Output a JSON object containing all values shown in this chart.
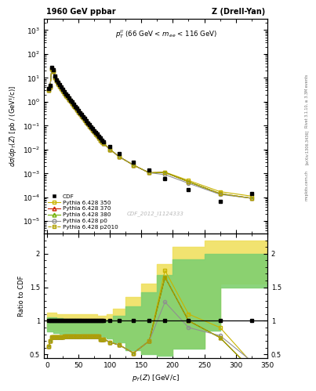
{
  "title_left": "1960 GeV ppbar",
  "title_right": "Z (Drell-Yan)",
  "ylabel_main": "dσ/dp_T(Z) [pb / (GeV!/c)]",
  "xlabel": "p_T(Z) [GeV!/c]",
  "ylabel_ratio": "Ratio to CDF",
  "annotation_top": "p_T^{ll} (66 GeV < m_{ee} < 116 GeV)",
  "watermark": "CDF_2012_I1124333",
  "rivet_text": "Rivet 3.1.10, ≥ 3.3M events",
  "arxiv_text": "[arXiv:1306.3436]",
  "mcplots_text": "mcplots.cern.ch",
  "ylim_main": [
    3e-06,
    3000.0
  ],
  "ylim_ratio": [
    0.45,
    2.3
  ],
  "xlim": [
    -5,
    350
  ],
  "cdf_pt": [
    2.5,
    5.0,
    7.5,
    10.0,
    12.5,
    15.0,
    17.5,
    20.0,
    22.5,
    25.0,
    27.5,
    30.0,
    32.5,
    35.0,
    37.5,
    40.0,
    42.5,
    45.0,
    47.5,
    50.0,
    52.5,
    55.0,
    57.5,
    60.0,
    62.5,
    65.0,
    67.5,
    70.0,
    72.5,
    75.0,
    77.5,
    80.0,
    82.5,
    85.0,
    87.5,
    90.0,
    100.0,
    115.0,
    137.5,
    162.5,
    187.5,
    225.0,
    275.0,
    325.0
  ],
  "cdf_y": [
    3.5,
    5.0,
    27.0,
    22.0,
    12.0,
    8.5,
    6.5,
    5.2,
    4.0,
    3.2,
    2.6,
    2.1,
    1.75,
    1.45,
    1.18,
    0.95,
    0.78,
    0.63,
    0.52,
    0.43,
    0.35,
    0.29,
    0.235,
    0.195,
    0.16,
    0.13,
    0.108,
    0.09,
    0.074,
    0.062,
    0.052,
    0.043,
    0.036,
    0.03,
    0.025,
    0.021,
    0.013,
    0.0065,
    0.003,
    0.00135,
    0.00058,
    0.00021,
    6.5e-05,
    0.00014
  ],
  "mc_pt": [
    2.5,
    5.0,
    7.5,
    10.0,
    12.5,
    15.0,
    17.5,
    20.0,
    22.5,
    25.0,
    27.5,
    30.0,
    32.5,
    35.0,
    37.5,
    40.0,
    42.5,
    45.0,
    47.5,
    50.0,
    52.5,
    55.0,
    57.5,
    60.0,
    62.5,
    65.0,
    67.5,
    70.0,
    72.5,
    75.0,
    77.5,
    80.0,
    82.5,
    85.0,
    87.5,
    90.0,
    100.0,
    115.0,
    137.5,
    162.5,
    187.5,
    225.0,
    275.0,
    325.0
  ],
  "py350_y": [
    3.0,
    4.2,
    23.0,
    19.0,
    10.5,
    7.5,
    5.7,
    4.5,
    3.6,
    2.85,
    2.3,
    1.85,
    1.55,
    1.28,
    1.04,
    0.84,
    0.69,
    0.56,
    0.46,
    0.38,
    0.31,
    0.255,
    0.21,
    0.172,
    0.141,
    0.116,
    0.096,
    0.079,
    0.065,
    0.054,
    0.045,
    0.037,
    0.031,
    0.025,
    0.021,
    0.018,
    0.01,
    0.0049,
    0.0022,
    0.00105,
    0.00112,
    0.0005,
    0.00017,
    0.00011
  ],
  "py370_y": [
    3.0,
    4.2,
    23.0,
    19.0,
    10.5,
    7.5,
    5.7,
    4.5,
    3.6,
    2.85,
    2.3,
    1.85,
    1.55,
    1.28,
    1.04,
    0.84,
    0.69,
    0.56,
    0.46,
    0.38,
    0.31,
    0.255,
    0.21,
    0.172,
    0.141,
    0.116,
    0.096,
    0.079,
    0.065,
    0.054,
    0.045,
    0.037,
    0.031,
    0.025,
    0.021,
    0.018,
    0.01,
    0.0049,
    0.0022,
    0.00105,
    0.00108,
    0.00044,
    0.00014,
    9e-05
  ],
  "py380_y": [
    3.0,
    4.2,
    23.0,
    19.0,
    10.5,
    7.5,
    5.7,
    4.5,
    3.6,
    2.85,
    2.3,
    1.85,
    1.55,
    1.28,
    1.04,
    0.84,
    0.69,
    0.56,
    0.46,
    0.38,
    0.31,
    0.255,
    0.21,
    0.172,
    0.141,
    0.116,
    0.096,
    0.079,
    0.065,
    0.054,
    0.045,
    0.037,
    0.031,
    0.025,
    0.021,
    0.018,
    0.01,
    0.0049,
    0.0022,
    0.00105,
    0.00108,
    0.00044,
    0.00014,
    9e-05
  ],
  "pyp0_y": [
    3.0,
    4.2,
    23.0,
    19.0,
    10.5,
    7.5,
    5.7,
    4.5,
    3.6,
    2.85,
    2.3,
    1.85,
    1.55,
    1.28,
    1.04,
    0.84,
    0.69,
    0.56,
    0.46,
    0.38,
    0.31,
    0.255,
    0.21,
    0.172,
    0.141,
    0.116,
    0.096,
    0.079,
    0.065,
    0.054,
    0.045,
    0.037,
    0.031,
    0.025,
    0.021,
    0.018,
    0.01,
    0.0049,
    0.0022,
    0.00105,
    0.00088,
    0.00038,
    0.00013,
    9e-05
  ],
  "pyp2010_y": [
    3.0,
    4.2,
    23.0,
    19.0,
    10.5,
    7.5,
    5.7,
    4.5,
    3.6,
    2.85,
    2.3,
    1.85,
    1.55,
    1.28,
    1.04,
    0.84,
    0.69,
    0.56,
    0.46,
    0.38,
    0.31,
    0.255,
    0.21,
    0.172,
    0.141,
    0.116,
    0.096,
    0.079,
    0.065,
    0.054,
    0.045,
    0.037,
    0.031,
    0.025,
    0.021,
    0.018,
    0.01,
    0.0049,
    0.0022,
    0.00105,
    0.00108,
    0.00044,
    0.00014,
    9e-05
  ],
  "ratio_pt": [
    2.5,
    5.0,
    7.5,
    10.0,
    12.5,
    15.0,
    17.5,
    20.0,
    22.5,
    25.0,
    27.5,
    30.0,
    32.5,
    35.0,
    37.5,
    40.0,
    42.5,
    45.0,
    47.5,
    50.0,
    52.5,
    55.0,
    57.5,
    60.0,
    62.5,
    65.0,
    67.5,
    70.0,
    72.5,
    75.0,
    77.5,
    80.0,
    82.5,
    85.0,
    87.5,
    90.0,
    100.0,
    115.0,
    137.5,
    162.5,
    187.5,
    225.0,
    275.0,
    325.0
  ],
  "ratio350_y": [
    0.62,
    0.7,
    0.76,
    0.76,
    0.76,
    0.76,
    0.76,
    0.76,
    0.76,
    0.76,
    0.77,
    0.77,
    0.77,
    0.77,
    0.77,
    0.77,
    0.77,
    0.77,
    0.77,
    0.77,
    0.77,
    0.77,
    0.77,
    0.77,
    0.77,
    0.77,
    0.77,
    0.77,
    0.77,
    0.77,
    0.77,
    0.77,
    0.77,
    0.73,
    0.73,
    0.73,
    0.68,
    0.64,
    0.52,
    0.7,
    1.75,
    1.1,
    0.9,
    0.38
  ],
  "ratio370_y": [
    0.62,
    0.7,
    0.76,
    0.76,
    0.76,
    0.76,
    0.76,
    0.76,
    0.76,
    0.76,
    0.77,
    0.77,
    0.77,
    0.77,
    0.77,
    0.77,
    0.77,
    0.77,
    0.77,
    0.77,
    0.77,
    0.77,
    0.77,
    0.77,
    0.77,
    0.77,
    0.77,
    0.77,
    0.77,
    0.77,
    0.77,
    0.77,
    0.77,
    0.73,
    0.73,
    0.73,
    0.68,
    0.64,
    0.52,
    0.7,
    1.65,
    1.0,
    0.75,
    0.28
  ],
  "ratio380_y": [
    0.62,
    0.7,
    0.76,
    0.76,
    0.76,
    0.76,
    0.76,
    0.76,
    0.76,
    0.76,
    0.77,
    0.77,
    0.77,
    0.77,
    0.77,
    0.77,
    0.77,
    0.77,
    0.77,
    0.77,
    0.77,
    0.77,
    0.77,
    0.77,
    0.77,
    0.77,
    0.77,
    0.77,
    0.77,
    0.77,
    0.77,
    0.77,
    0.77,
    0.73,
    0.73,
    0.73,
    0.68,
    0.64,
    0.52,
    0.7,
    1.65,
    1.0,
    0.75,
    0.28
  ],
  "ratiop0_y": [
    0.62,
    0.7,
    0.76,
    0.76,
    0.76,
    0.76,
    0.76,
    0.76,
    0.76,
    0.76,
    0.77,
    0.77,
    0.77,
    0.77,
    0.77,
    0.77,
    0.77,
    0.77,
    0.77,
    0.77,
    0.77,
    0.77,
    0.77,
    0.77,
    0.77,
    0.77,
    0.77,
    0.77,
    0.77,
    0.77,
    0.77,
    0.77,
    0.77,
    0.73,
    0.73,
    0.73,
    0.68,
    0.64,
    0.52,
    0.7,
    1.28,
    0.9,
    0.78,
    0.4
  ],
  "ratiop2010_y": [
    0.62,
    0.7,
    0.76,
    0.76,
    0.76,
    0.76,
    0.76,
    0.76,
    0.76,
    0.76,
    0.77,
    0.77,
    0.77,
    0.77,
    0.77,
    0.77,
    0.77,
    0.77,
    0.77,
    0.77,
    0.77,
    0.77,
    0.77,
    0.77,
    0.77,
    0.77,
    0.77,
    0.77,
    0.77,
    0.77,
    0.77,
    0.77,
    0.77,
    0.73,
    0.73,
    0.73,
    0.68,
    0.64,
    0.52,
    0.7,
    1.65,
    1.0,
    0.75,
    0.28
  ],
  "band_yellow_x": [
    0,
    5,
    10,
    15,
    20,
    25,
    30,
    35,
    40,
    45,
    50,
    55,
    60,
    65,
    70,
    75,
    80,
    85,
    90,
    95,
    105,
    125,
    150,
    175,
    200,
    250,
    275,
    350
  ],
  "band_yellow_top": [
    1.12,
    1.12,
    1.12,
    1.1,
    1.1,
    1.1,
    1.1,
    1.1,
    1.1,
    1.1,
    1.1,
    1.1,
    1.1,
    1.1,
    1.1,
    1.1,
    1.08,
    1.08,
    1.08,
    1.1,
    1.18,
    1.35,
    1.55,
    1.85,
    2.1,
    2.2,
    2.2,
    2.2
  ],
  "band_yellow_bot": [
    0.88,
    0.88,
    0.85,
    0.85,
    0.84,
    0.84,
    0.84,
    0.84,
    0.84,
    0.83,
    0.83,
    0.82,
    0.82,
    0.82,
    0.81,
    0.81,
    0.8,
    0.8,
    0.78,
    0.76,
    0.7,
    0.58,
    0.52,
    0.5,
    0.6,
    0.88,
    1.55,
    1.85
  ],
  "band_green_x": [
    0,
    5,
    10,
    15,
    20,
    25,
    30,
    35,
    40,
    45,
    50,
    55,
    60,
    65,
    70,
    75,
    80,
    85,
    90,
    95,
    105,
    125,
    150,
    175,
    200,
    250,
    275,
    350
  ],
  "band_green_top": [
    1.05,
    1.05,
    1.05,
    1.04,
    1.04,
    1.03,
    1.03,
    1.03,
    1.03,
    1.03,
    1.03,
    1.02,
    1.02,
    1.02,
    1.02,
    1.02,
    1.0,
    1.0,
    1.0,
    1.02,
    1.08,
    1.22,
    1.42,
    1.68,
    1.92,
    2.0,
    2.0,
    2.0
  ],
  "band_green_bot": [
    0.84,
    0.84,
    0.82,
    0.82,
    0.81,
    0.81,
    0.81,
    0.81,
    0.81,
    0.8,
    0.8,
    0.8,
    0.79,
    0.79,
    0.79,
    0.78,
    0.78,
    0.77,
    0.76,
    0.74,
    0.68,
    0.56,
    0.5,
    0.48,
    0.58,
    0.85,
    1.5,
    1.78
  ],
  "color_cdf": "#000000",
  "color_350": "#c8b400",
  "color_370": "#cc2200",
  "color_380": "#70b000",
  "color_p0": "#909090",
  "color_p2010": "#b0a000",
  "color_yellow_band": "#f0e060",
  "color_green_band": "#80d070",
  "bg_color": "#ffffff"
}
